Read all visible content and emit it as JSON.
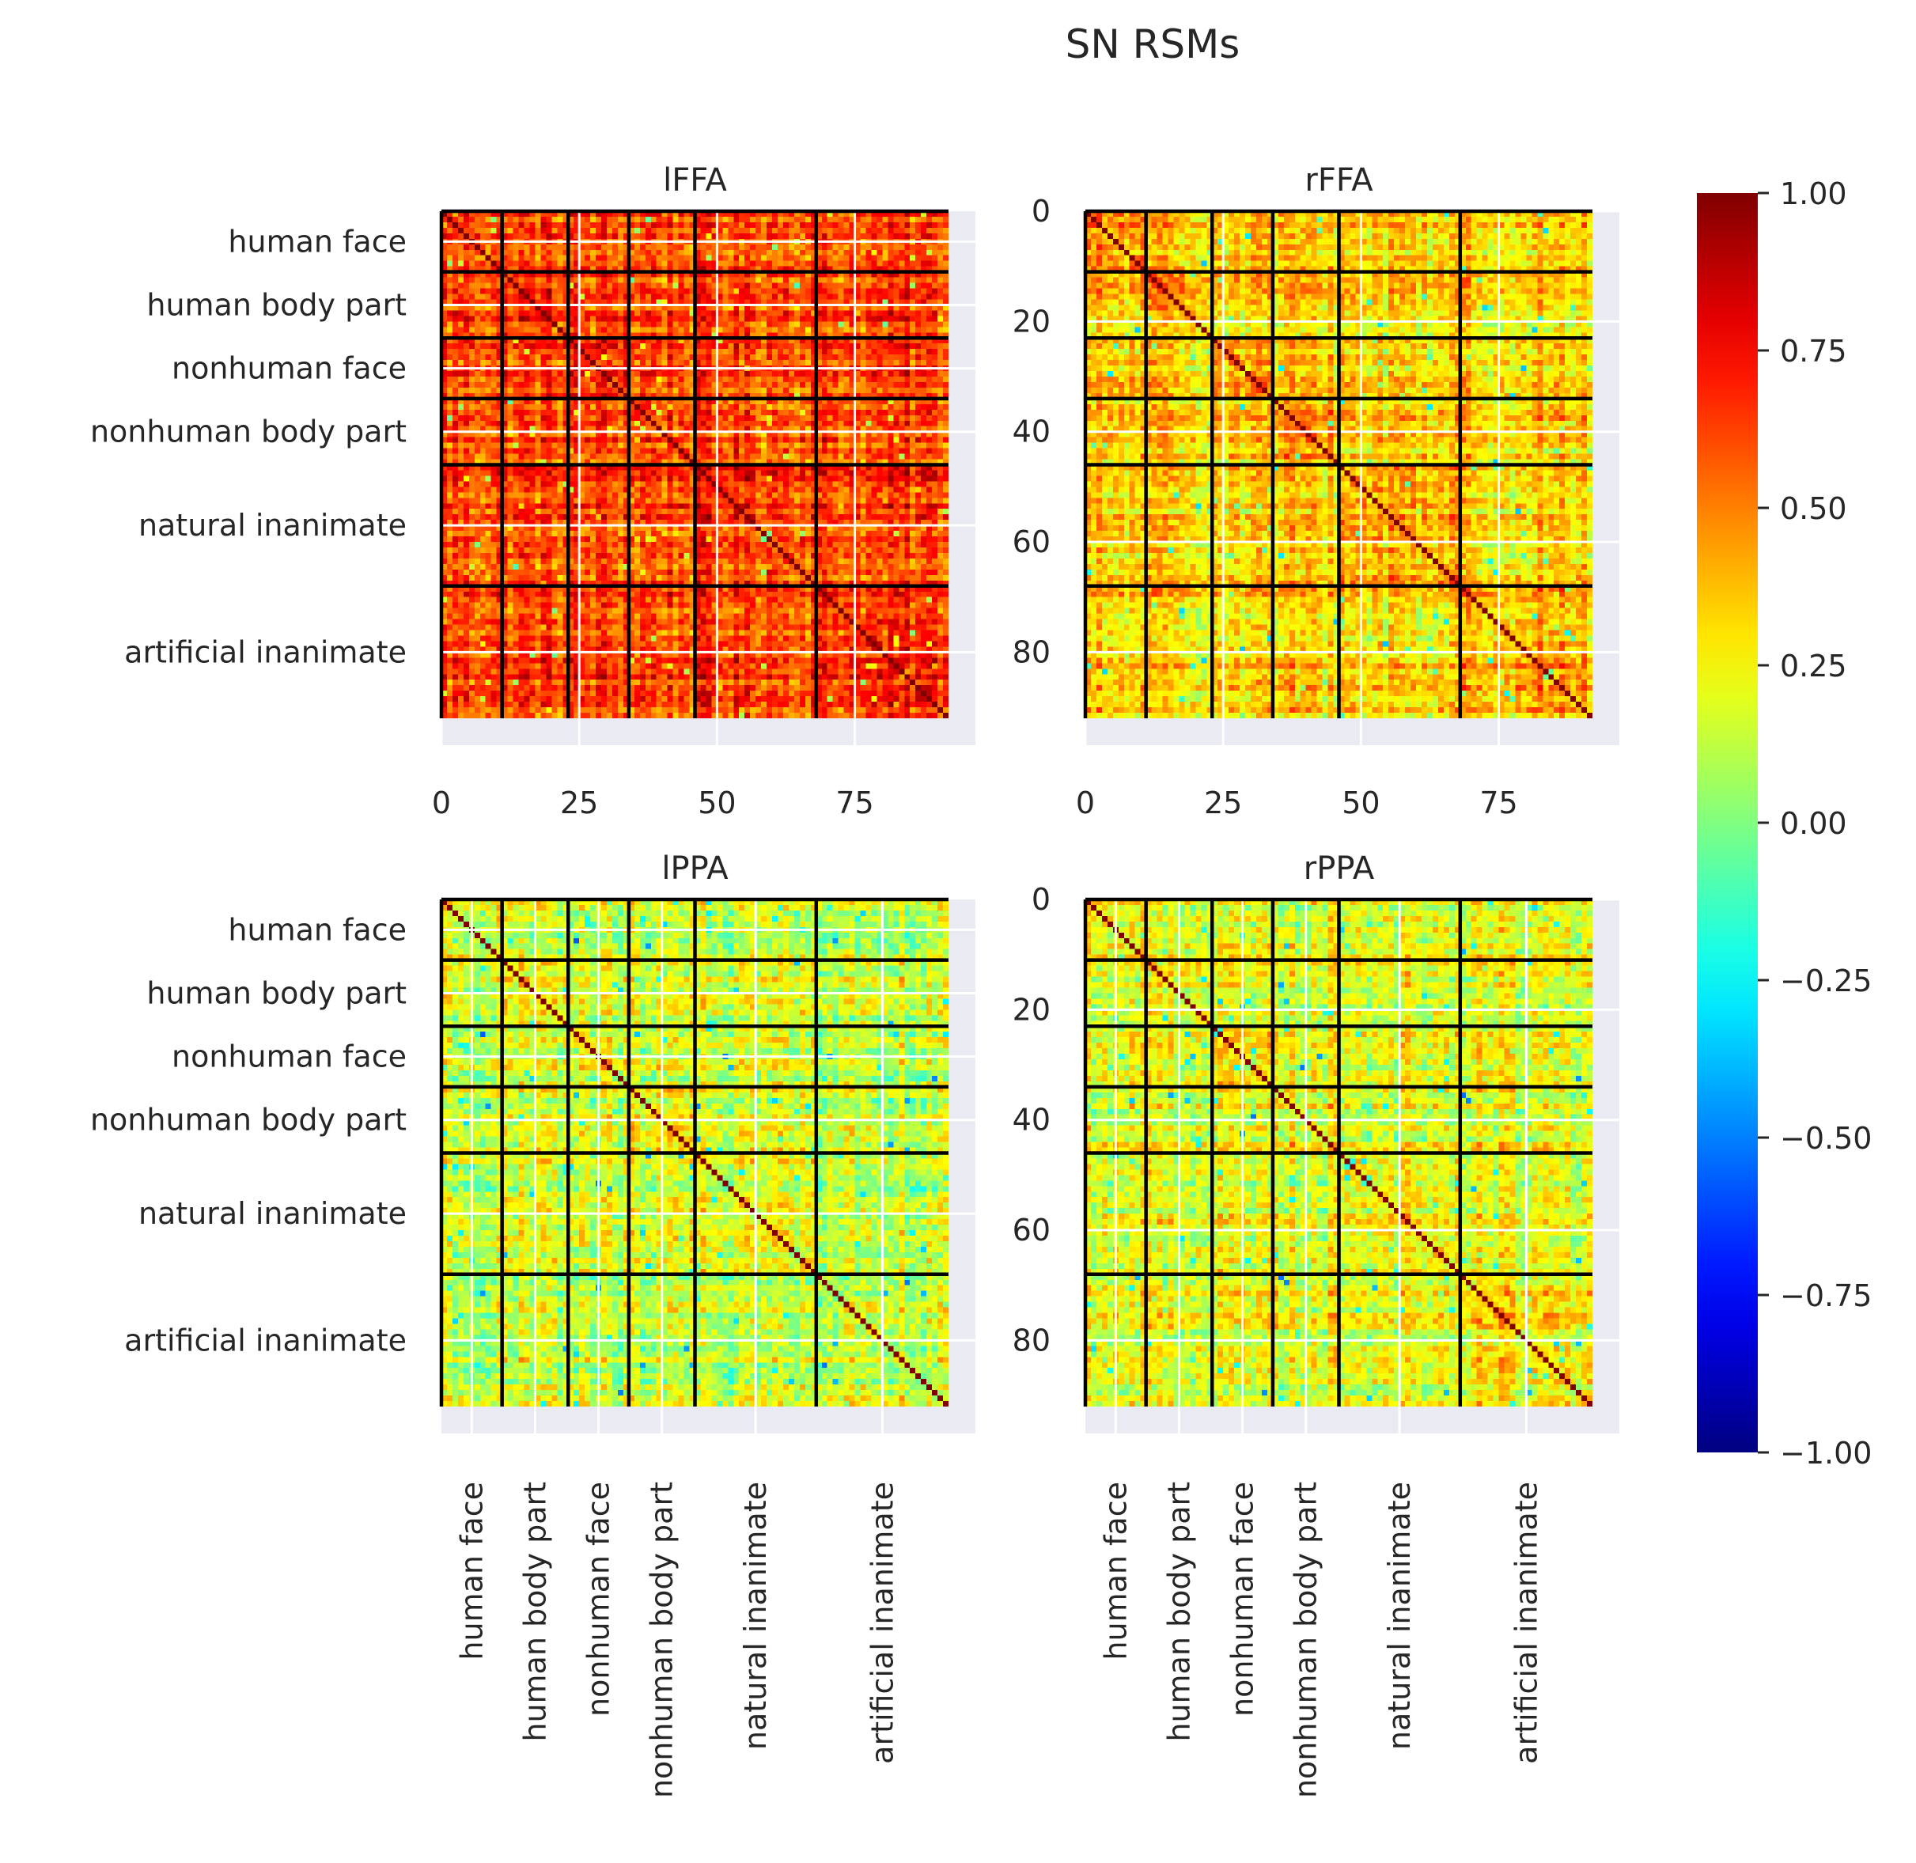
{
  "chart_data": {
    "type": "heatmap",
    "title": "SN RSMs",
    "n": 92,
    "categories": [
      "human face",
      "human body part",
      "nonhuman face",
      "nonhuman body part",
      "natural inanimate",
      "artificial inanimate"
    ],
    "category_boundaries": [
      0,
      11,
      23,
      34,
      46,
      68,
      92
    ],
    "colorbar": {
      "colormap": "jet",
      "vmin": -1.0,
      "vmax": 1.0,
      "ticks": [
        "1.00",
        "0.75",
        "0.50",
        "0.25",
        "0.00",
        "−0.25",
        "−0.50",
        "−0.75",
        "−1.00"
      ]
    },
    "panels": [
      {
        "title": "lFFA",
        "ylabels": [
          "human face",
          "human body part",
          "nonhuman face",
          "nonhuman body part",
          "natural inanimate",
          "artificial inanimate"
        ],
        "xlabels": [
          "0",
          "25",
          "50",
          "75"
        ],
        "approx_offdiag_mean": 0.62,
        "approx_within_category_mean": 0.66,
        "diagonal": 1.0
      },
      {
        "title": "rFFA",
        "ylabels": [
          "0",
          "20",
          "40",
          "60",
          "80"
        ],
        "xlabels": [
          "0",
          "25",
          "50",
          "75"
        ],
        "approx_offdiag_mean": 0.33,
        "approx_within_category_mean": 0.42,
        "diagonal": 1.0
      },
      {
        "title": "lPPA",
        "ylabels": [
          "human face",
          "human body part",
          "nonhuman face",
          "nonhuman body part",
          "natural inanimate",
          "artificial inanimate"
        ],
        "xlabels": [
          "human face",
          "human body part",
          "nonhuman face",
          "nonhuman body part",
          "natural inanimate",
          "artificial inanimate"
        ],
        "approx_offdiag_mean": 0.15,
        "approx_within_category_mean": 0.2,
        "diagonal": 1.0
      },
      {
        "title": "rPPA",
        "ylabels": [
          "0",
          "20",
          "40",
          "60",
          "80"
        ],
        "xlabels": [
          "human face",
          "human body part",
          "nonhuman face",
          "nonhuman body part",
          "natural inanimate",
          "artificial inanimate"
        ],
        "approx_offdiag_mean": 0.22,
        "approx_within_category_mean": 0.28,
        "diagonal": 1.0
      }
    ]
  }
}
